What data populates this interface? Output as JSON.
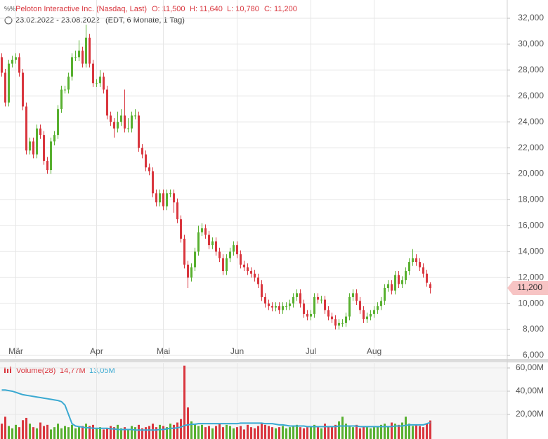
{
  "chart_data": [
    {
      "type": "candlestick",
      "title": "Peloton Interactive Inc. (Nasdaq, Last)",
      "info": [
        "O: 11,500",
        "H: 11,640",
        "L: 10,780",
        "C: 11,200"
      ],
      "subtitle": "23.02.2022 - 23.08.2022",
      "note": "(EDT, 6 Monate, 1 Tag)",
      "last_price": {
        "value": 11200,
        "label": "11,200"
      },
      "categories": [
        null,
        null,
        null,
        null,
        "Mär",
        null,
        null,
        null,
        null,
        null,
        null,
        null,
        null,
        null,
        null,
        null,
        null,
        null,
        null,
        null,
        null,
        null,
        null,
        null,
        null,
        null,
        null,
        "Apr",
        null,
        null,
        null,
        null,
        null,
        null,
        null,
        null,
        null,
        null,
        null,
        null,
        null,
        null,
        null,
        null,
        null,
        null,
        "Mai",
        null,
        null,
        null,
        null,
        null,
        null,
        null,
        null,
        null,
        null,
        null,
        null,
        null,
        null,
        null,
        null,
        null,
        null,
        null,
        null,
        "Jun",
        null,
        null,
        null,
        null,
        null,
        null,
        null,
        null,
        null,
        null,
        null,
        null,
        null,
        null,
        null,
        null,
        null,
        null,
        null,
        null,
        "Jul",
        null,
        null,
        null,
        null,
        null,
        null,
        null,
        null,
        null,
        null,
        null,
        null,
        null,
        null,
        null,
        null,
        null,
        "Aug",
        null,
        null,
        null,
        null,
        null,
        null,
        null,
        null,
        null,
        null,
        null,
        null,
        null,
        null,
        null,
        null
      ],
      "open": [
        29000,
        27800,
        25500,
        28500,
        28800,
        29000,
        27800,
        25200,
        21800,
        22500,
        21500,
        23500,
        23000,
        21000,
        20300,
        22500,
        23000,
        25000,
        26500,
        26500,
        27500,
        29000,
        29000,
        29500,
        28500,
        30500,
        28500,
        27000,
        27000,
        27500,
        26500,
        24500,
        24000,
        23500,
        24000,
        24500,
        23500,
        23500,
        24500,
        24500,
        22000,
        21500,
        20500,
        20200,
        18500,
        17800,
        18500,
        17500,
        18500,
        18500,
        17800,
        16500,
        15000,
        13000,
        12000,
        12800,
        14000,
        15500,
        15800,
        15300,
        14500,
        14800,
        14000,
        13500,
        12500,
        13500,
        14000,
        14500,
        13800,
        13000,
        12800,
        12500,
        12300,
        12000,
        11500,
        10500,
        10000,
        9800,
        9700,
        9800,
        9500,
        9800,
        9800,
        10000,
        10500,
        10800,
        10000,
        9200,
        9000,
        9200,
        10500,
        10300,
        10300,
        9500,
        9000,
        8800,
        8300,
        8500,
        8500,
        9000,
        10500,
        10800,
        10200,
        9500,
        8800,
        9000,
        9200,
        9500,
        9800,
        10200,
        11200,
        11500,
        11000,
        12200,
        11500,
        11800,
        12500,
        13200,
        13500,
        13200,
        12800,
        12300,
        11500
      ],
      "high": [
        29300,
        28100,
        28800,
        29100,
        29300,
        29300,
        28100,
        25500,
        22800,
        22800,
        23800,
        23800,
        23300,
        21300,
        22800,
        23300,
        25300,
        26800,
        26800,
        27800,
        29300,
        29500,
        30300,
        29800,
        31500,
        30800,
        28800,
        27300,
        28000,
        27800,
        26800,
        24800,
        24300,
        24800,
        25000,
        26500,
        24300,
        24800,
        25000,
        24800,
        22300,
        21800,
        20800,
        20500,
        18800,
        18800,
        18800,
        18800,
        18800,
        18800,
        18100,
        16800,
        15300,
        13300,
        13100,
        14300,
        16000,
        16200,
        16100,
        15600,
        15100,
        15100,
        14300,
        13800,
        13800,
        14300,
        14800,
        14800,
        14100,
        13300,
        13100,
        12800,
        12600,
        12300,
        11800,
        10800,
        10300,
        10100,
        10100,
        10100,
        10100,
        10100,
        10300,
        10800,
        11100,
        11100,
        10300,
        9500,
        9500,
        10800,
        10800,
        10600,
        10600,
        9800,
        9300,
        9100,
        8800,
        8800,
        9300,
        10800,
        11100,
        11100,
        10500,
        9800,
        9300,
        9500,
        9800,
        10100,
        10500,
        11500,
        11800,
        11800,
        12500,
        12500,
        12100,
        12800,
        13500,
        14200,
        13800,
        13500,
        13100,
        12600,
        11640
      ],
      "low": [
        27500,
        25200,
        25200,
        28200,
        28500,
        27500,
        24900,
        21500,
        21500,
        21200,
        21200,
        22700,
        20700,
        20000,
        20000,
        22200,
        22700,
        24700,
        26200,
        26200,
        27200,
        28700,
        28700,
        28200,
        28200,
        28200,
        26700,
        26700,
        26700,
        26200,
        24200,
        23700,
        22800,
        23200,
        23700,
        23200,
        23200,
        23200,
        24200,
        21700,
        21200,
        20200,
        19900,
        18200,
        17500,
        17500,
        17200,
        17200,
        18200,
        17000,
        16200,
        14700,
        12700,
        11200,
        11700,
        12500,
        13700,
        15200,
        15000,
        14200,
        14200,
        13700,
        13200,
        12200,
        12200,
        13200,
        13700,
        13500,
        12700,
        12500,
        12200,
        12000,
        11700,
        11200,
        10200,
        9700,
        9500,
        9400,
        9400,
        9200,
        9200,
        9500,
        9500,
        9700,
        10200,
        9700,
        8900,
        8700,
        8700,
        8900,
        10000,
        10000,
        9200,
        8700,
        8500,
        8000,
        8000,
        8200,
        8200,
        8700,
        10200,
        9900,
        9200,
        8500,
        8500,
        8700,
        8900,
        9200,
        9500,
        9900,
        10900,
        10700,
        10700,
        11200,
        11200,
        11500,
        12200,
        12900,
        12900,
        12500,
        12000,
        11300,
        10780
      ],
      "close": [
        27800,
        25500,
        28500,
        28800,
        29000,
        27800,
        25200,
        21800,
        22500,
        21500,
        23500,
        23000,
        21000,
        20300,
        22500,
        23000,
        25000,
        26500,
        26500,
        27500,
        29000,
        29000,
        29500,
        28500,
        30500,
        28500,
        27000,
        27000,
        27500,
        26500,
        24500,
        24000,
        23500,
        24000,
        24500,
        23500,
        23500,
        24500,
        24500,
        22000,
        21500,
        20500,
        20200,
        18500,
        17800,
        18500,
        17500,
        18500,
        18500,
        17800,
        16500,
        15000,
        13000,
        12000,
        12800,
        14000,
        15500,
        15800,
        15300,
        14500,
        14800,
        14000,
        13500,
        12500,
        13500,
        14000,
        14500,
        13800,
        13000,
        12800,
        12500,
        12300,
        12000,
        11500,
        10500,
        10000,
        9800,
        9700,
        9800,
        9500,
        9800,
        9800,
        10000,
        10500,
        10800,
        10000,
        9200,
        9000,
        9200,
        10500,
        10300,
        10300,
        9500,
        9000,
        8800,
        8300,
        8500,
        8500,
        9000,
        10500,
        10800,
        10200,
        9500,
        8800,
        9000,
        9200,
        9500,
        9800,
        10200,
        11200,
        11500,
        11000,
        12200,
        11500,
        11800,
        12500,
        13200,
        13500,
        13200,
        12800,
        12300,
        11600,
        11200
      ],
      "up_color": "#58b030",
      "down_color": "#d9363e",
      "ylim": [
        6000,
        32000
      ],
      "yticks": [
        {
          "value": 6000,
          "label": "6,000"
        },
        {
          "value": 8000,
          "label": "8,000"
        },
        {
          "value": 10000,
          "label": "10,000"
        },
        {
          "value": 12000,
          "label": "12,000"
        },
        {
          "value": 14000,
          "label": "14,000"
        },
        {
          "value": 16000,
          "label": "16,000"
        },
        {
          "value": 18000,
          "label": "18,000"
        },
        {
          "value": 20000,
          "label": "20,000"
        },
        {
          "value": 22000,
          "label": "22,000"
        },
        {
          "value": 24000,
          "label": "24,000"
        },
        {
          "value": 26000,
          "label": "26,000"
        },
        {
          "value": 28000,
          "label": "28,000"
        },
        {
          "value": 30000,
          "label": "30,000"
        },
        {
          "value": 32000,
          "label": "32,000"
        }
      ],
      "grid": true
    },
    {
      "type": "volume",
      "title": "Volume(28)",
      "series": [
        {
          "name": "14,77M",
          "color": "#d9363e",
          "values": [
            12,
            18,
            10,
            8,
            11,
            9,
            15,
            17,
            12,
            9,
            8,
            13,
            10,
            11,
            7,
            9,
            12,
            8,
            10,
            9,
            11,
            8,
            9,
            10,
            12,
            10,
            11,
            8,
            9,
            7,
            8,
            10,
            9,
            11,
            8,
            9,
            7,
            10,
            9,
            11,
            8,
            9,
            10,
            12,
            9,
            11,
            10,
            9,
            12,
            11,
            13,
            16,
            62,
            26,
            14,
            12,
            10,
            11,
            9,
            10,
            8,
            10,
            12,
            9,
            11,
            10,
            8,
            9,
            10,
            7,
            11,
            9,
            8,
            10,
            12,
            11,
            10,
            9,
            8,
            9,
            10,
            8,
            9,
            10,
            11,
            9,
            8,
            9,
            10,
            11,
            9,
            8,
            12,
            10,
            9,
            11,
            14,
            18,
            12,
            10,
            9,
            11,
            8,
            10,
            9,
            8,
            9,
            10,
            11,
            12,
            10,
            13,
            12,
            11,
            13,
            18,
            12,
            10,
            11,
            10,
            9,
            12,
            14.77
          ]
        },
        {
          "name": "13,05M",
          "color": "#3aa9d1",
          "values": [
            41,
            41,
            40.5,
            40,
            39,
            38,
            37,
            36.5,
            36,
            35.5,
            35,
            34.5,
            34,
            33.5,
            33,
            32.5,
            32,
            31,
            28,
            20,
            12,
            10,
            9.5,
            9,
            8.5,
            8.5,
            8,
            8,
            8,
            8,
            8,
            7.5,
            7.5,
            7,
            7,
            7,
            7,
            7,
            6.5,
            6.5,
            6.5,
            6.5,
            6.5,
            6.5,
            6.5,
            7,
            7,
            7.5,
            8,
            8,
            8.5,
            9,
            10.5,
            11,
            11.5,
            11.5,
            12,
            12,
            12,
            12,
            12,
            12,
            12,
            12,
            12,
            12,
            12,
            12,
            12.5,
            12.5,
            12.5,
            12.5,
            12.5,
            12.5,
            12.5,
            12,
            12,
            12,
            11.5,
            11,
            11,
            10.5,
            10,
            10,
            10,
            10,
            10,
            9.5,
            9.5,
            9.5,
            9.5,
            9.5,
            9.5,
            9.5,
            9.5,
            9.5,
            10,
            10,
            10,
            10,
            10,
            10,
            9.5,
            9.5,
            9.5,
            9.5,
            9.5,
            9.5,
            9.5,
            9.5,
            9.5,
            9.5,
            10,
            10,
            10,
            10.5,
            11,
            11,
            11,
            11,
            11,
            12,
            13.05
          ]
        }
      ],
      "ylim": [
        0,
        64.2
      ],
      "yticks": [
        {
          "value": 20,
          "label": "20,00M"
        },
        {
          "value": 40,
          "label": "40,00M"
        },
        {
          "value": 60,
          "label": "60,00M"
        }
      ],
      "grid": true
    }
  ]
}
